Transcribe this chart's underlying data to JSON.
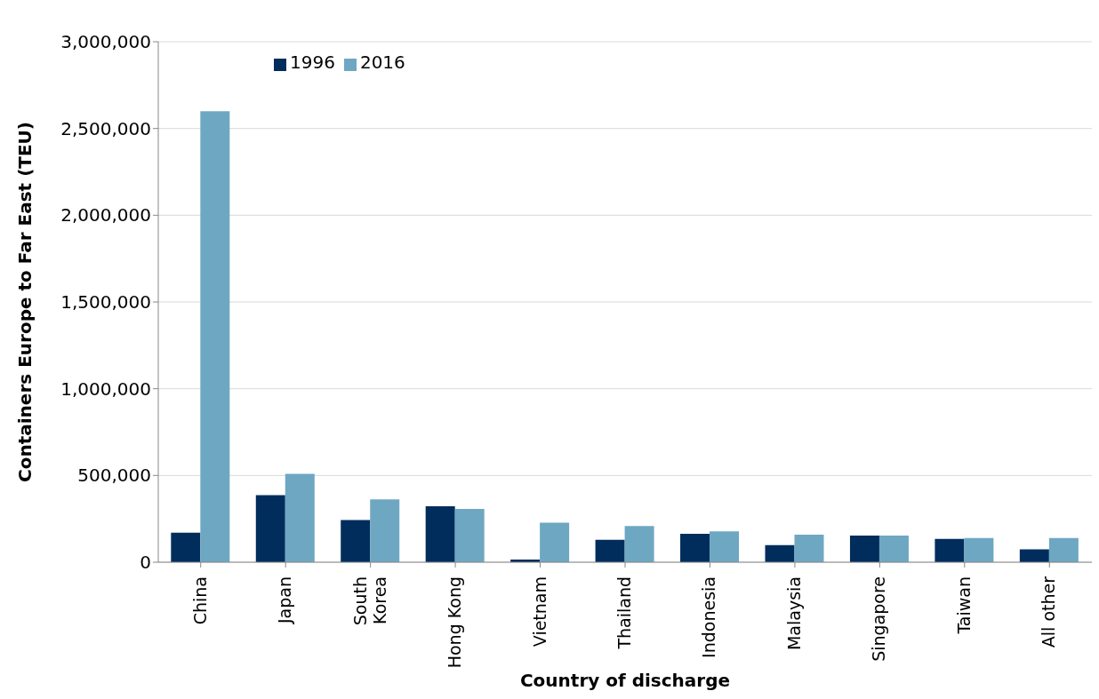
{
  "chart_data": {
    "type": "bar",
    "xlabel": "Country of discharge",
    "ylabel": "Containers Europe to Far East (TEU)",
    "categories": [
      "China",
      "Japan",
      "South Korea",
      "Hong Kong",
      "Vietnam",
      "Thailand",
      "Indonesia",
      "Malaysia",
      "Singapore",
      "Taiwan",
      "All other"
    ],
    "series": [
      {
        "name": "1996",
        "color": "#002d5c",
        "values": [
          170000,
          387000,
          243000,
          322000,
          15000,
          129000,
          164000,
          99000,
          154000,
          134000,
          74000
        ]
      },
      {
        "name": "2016",
        "color": "#6ea7c2",
        "values": [
          2600000,
          510000,
          362000,
          307000,
          228000,
          208000,
          178000,
          159000,
          154000,
          139000,
          139000
        ]
      }
    ],
    "ylim": [
      0,
      3000000
    ],
    "yticks": [
      0,
      {
        "value": 500000,
        "label": "500,000"
      },
      {
        "value": 1000000,
        "label": "1,000,000"
      },
      {
        "value": 1500000,
        "label": "1,500,000"
      },
      {
        "value": 2000000,
        "label": "2,000,000"
      },
      {
        "value": 2500000,
        "label": "2,500,000"
      },
      {
        "value": 3000000,
        "label": "3,000,000"
      }
    ],
    "grid": "y",
    "legend": "top left"
  }
}
